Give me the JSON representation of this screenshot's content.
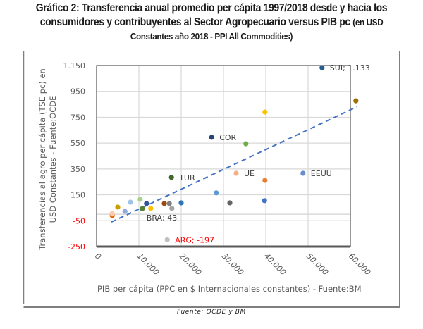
{
  "title": {
    "line1": "Gráfico 2: Transferencia anual promedio per cápita 1997/2018 desde y hacia los",
    "line2_main": "consumidores y contribuyentes al Sector Agropecuario versus PIB pc",
    "line2_small": "(en USD",
    "line3": "Constantes año 2018 - PPI All Commodities)"
  },
  "source_note": "Fuente: OCDE y BM",
  "chart_data": {
    "type": "scatter",
    "title": "Gráfico 2: Transferencia anual promedio per cápita 1997/2018 desde y hacia los consumidores y contribuyentes al Sector Agropecuario versus PIB pc (en USD Constantes año 2018 - PPI All Commodities)",
    "xlabel": "PIB per cápita (PPC en $ Internacionales constantes) -  Fuente:BM",
    "ylabel_line1": "Transferencias al agro per cápita (TSE pc) en",
    "ylabel_line2": "USD Constantes - Fuente:OCDE",
    "xlim": [
      0,
      60000
    ],
    "ylim": [
      -250,
      1150
    ],
    "x_ticks": [
      {
        "value": 0,
        "label": "0"
      },
      {
        "value": 10000,
        "label": "10.000"
      },
      {
        "value": 20000,
        "label": "20.000"
      },
      {
        "value": 30000,
        "label": "30.000"
      },
      {
        "value": 40000,
        "label": "40.000"
      },
      {
        "value": 50000,
        "label": "50.000"
      },
      {
        "value": 60000,
        "label": "60.000"
      }
    ],
    "y_ticks": [
      {
        "value": 1150,
        "label": "1.150",
        "negative": false
      },
      {
        "value": 950,
        "label": "950",
        "negative": false
      },
      {
        "value": 750,
        "label": "750",
        "negative": false
      },
      {
        "value": 550,
        "label": "550",
        "negative": false
      },
      {
        "value": 350,
        "label": "350",
        "negative": false
      },
      {
        "value": 150,
        "label": "150",
        "negative": false
      },
      {
        "value": -50,
        "label": "-50",
        "negative": true
      },
      {
        "value": -250,
        "label": "-250",
        "negative": true
      }
    ],
    "grid": true,
    "zero_line": true,
    "points": [
      {
        "x": 53300,
        "y": 1133,
        "color": "#255e91",
        "label": "SUI; 1.133",
        "label_color": "#404040"
      },
      {
        "x": 61300,
        "y": 877,
        "color": "#9e7000",
        "label": ""
      },
      {
        "x": 39800,
        "y": 790,
        "color": "#ffc000",
        "label": ""
      },
      {
        "x": 27200,
        "y": 595,
        "color": "#264478",
        "label": "COR",
        "label_color": "#404040"
      },
      {
        "x": 35300,
        "y": 545,
        "color": "#70ad47",
        "label": ""
      },
      {
        "x": 17700,
        "y": 285,
        "color": "#43682b",
        "label": "TUR",
        "label_color": "#404040"
      },
      {
        "x": 33000,
        "y": 317,
        "color": "#f4b183",
        "label": "UE",
        "label_color": "#404040"
      },
      {
        "x": 39800,
        "y": 262,
        "color": "#ed7d31",
        "label": ""
      },
      {
        "x": 48800,
        "y": 317,
        "color": "#698ed0",
        "label": "EEUU",
        "label_color": "#404040"
      },
      {
        "x": 28300,
        "y": 165,
        "color": "#5b9bd5",
        "label": ""
      },
      {
        "x": 39700,
        "y": 105,
        "color": "#4472c4",
        "label": ""
      },
      {
        "x": 31500,
        "y": 88,
        "color": "#636363",
        "label": ""
      },
      {
        "x": 20000,
        "y": 88,
        "color": "#2e75b6",
        "label": ""
      },
      {
        "x": 16000,
        "y": 83,
        "color": "#9e480e",
        "label": ""
      },
      {
        "x": 17200,
        "y": 83,
        "color": "#7f7f7f",
        "label": ""
      },
      {
        "x": 17800,
        "y": 45,
        "color": "#a5a5a5",
        "label": ""
      },
      {
        "x": 10800,
        "y": 43,
        "color": "#548235",
        "label": "BRA; 43",
        "label_color": "#404040"
      },
      {
        "x": 12800,
        "y": 45,
        "color": "#ffc000",
        "label": ""
      },
      {
        "x": 11800,
        "y": 83,
        "color": "#2f5597",
        "label": ""
      },
      {
        "x": 10300,
        "y": 115,
        "color": "#a9d18e",
        "label": ""
      },
      {
        "x": 8000,
        "y": 93,
        "color": "#9dc3e6",
        "label": ""
      },
      {
        "x": 5000,
        "y": 55,
        "color": "#c9a000",
        "label": ""
      },
      {
        "x": 6700,
        "y": 22,
        "color": "#8faadc",
        "label": ""
      },
      {
        "x": 3700,
        "y": -10,
        "color": "#e46c0a",
        "label": ""
      },
      {
        "x": 3700,
        "y": 5,
        "color": "#f8cbad",
        "label": ""
      },
      {
        "x": 16700,
        "y": -197,
        "color": "#bfbfbf",
        "label": "ARG; -197",
        "label_color": "#ff0000"
      }
    ],
    "trendline": {
      "type": "linear",
      "style": "dashed",
      "color": "#4472c4",
      "from": {
        "x": 3500,
        "y": -60
      },
      "to": {
        "x": 61500,
        "y": 830
      }
    },
    "colors": {
      "grid": "#d9d9d9",
      "plot_border": "#595959",
      "tick_label": "#595959",
      "negative_tick_label": "#ff0000",
      "outer_border": "#7f7f7f"
    }
  }
}
